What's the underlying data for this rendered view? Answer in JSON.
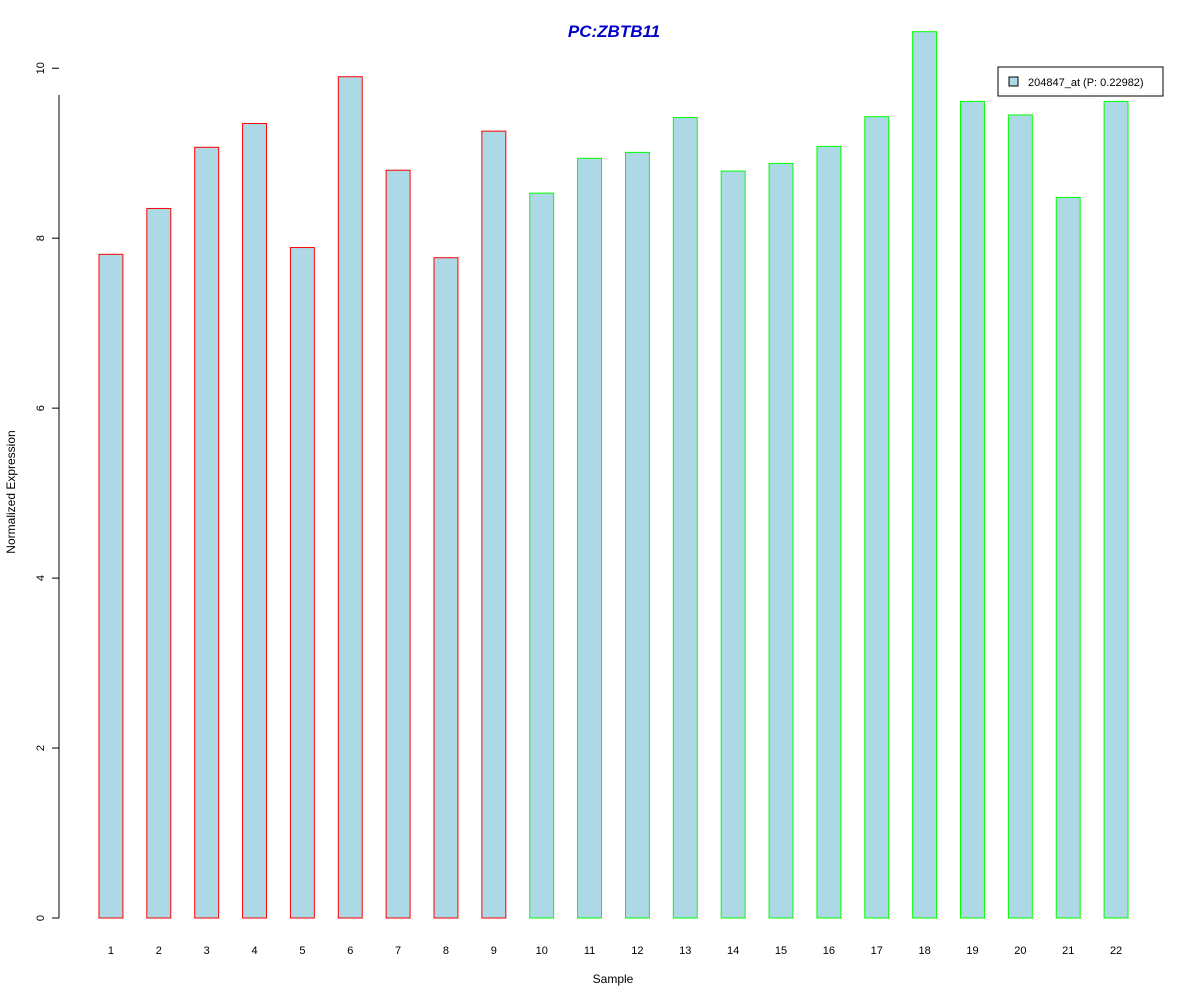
{
  "chart_data": {
    "type": "bar",
    "title": "PC:ZBTB11",
    "xlabel": "Sample",
    "ylabel": "Normalized Expression",
    "categories": [
      "1",
      "2",
      "3",
      "4",
      "5",
      "6",
      "7",
      "8",
      "9",
      "10",
      "11",
      "12",
      "13",
      "14",
      "15",
      "16",
      "17",
      "18",
      "19",
      "20",
      "21",
      "22"
    ],
    "values": [
      7.81,
      8.35,
      9.07,
      9.35,
      7.89,
      9.9,
      8.8,
      7.77,
      9.26,
      8.53,
      8.94,
      9.01,
      9.42,
      8.79,
      8.88,
      9.08,
      9.43,
      10.43,
      9.61,
      9.45,
      8.48,
      9.61
    ],
    "groups": [
      "red",
      "red",
      "red",
      "red",
      "red",
      "red",
      "red",
      "red",
      "red",
      "green",
      "green",
      "green",
      "green",
      "green",
      "green",
      "green",
      "green",
      "green",
      "green",
      "green",
      "green",
      "green"
    ],
    "ylim": [
      0,
      10.45
    ],
    "yticks": [
      0,
      2,
      4,
      6,
      8,
      10
    ],
    "grid": false,
    "legend": {
      "position": "top-right",
      "entries": [
        {
          "label": "204847_at (P: 0.22982)",
          "fill": "#add8e6"
        }
      ]
    },
    "colors": {
      "title": "#0000cc",
      "bar_fill": "#add8e6",
      "border_red": "#ff0000",
      "border_green": "#00ff00"
    }
  }
}
